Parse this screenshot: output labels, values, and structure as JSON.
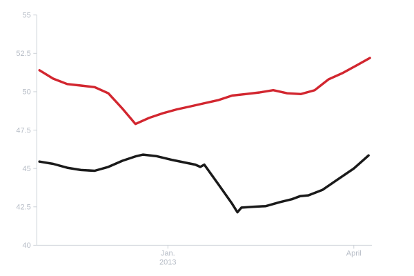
{
  "page": {
    "background": "#ffffff"
  },
  "colors": {
    "axis_line": "#ccd1d7",
    "tick_label": "#b6bcc6",
    "red_series": "#d2262f",
    "black_series": "#1a1a1a",
    "background": "#ffffff"
  },
  "chart_data": {
    "type": "line",
    "title": "",
    "xlabel": "",
    "ylabel": "",
    "grid": "off",
    "legend": "none",
    "y_axis": {
      "min": 40,
      "max": 55,
      "ticks": [
        40,
        42.5,
        45,
        47.5,
        50,
        52.5,
        55
      ],
      "tick_labels": [
        "40",
        "42.5",
        "45",
        "47.5",
        "50",
        "52.5",
        "55"
      ]
    },
    "x_axis": {
      "ticks": [
        {
          "pos": 0.392,
          "label": "Jan.",
          "sublabel": "2013"
        },
        {
          "pos": 0.948,
          "label": "April",
          "sublabel": ""
        }
      ]
    },
    "series": [
      {
        "name": "red-line",
        "color": "#d2262f",
        "stroke_width": 3.4,
        "points": [
          [
            0.008,
            51.4
          ],
          [
            0.049,
            50.85
          ],
          [
            0.091,
            50.5
          ],
          [
            0.132,
            50.4
          ],
          [
            0.173,
            50.3
          ],
          [
            0.214,
            49.9
          ],
          [
            0.256,
            48.9
          ],
          [
            0.295,
            47.9
          ],
          [
            0.336,
            48.3
          ],
          [
            0.377,
            48.6
          ],
          [
            0.419,
            48.85
          ],
          [
            0.46,
            49.05
          ],
          [
            0.501,
            49.25
          ],
          [
            0.542,
            49.45
          ],
          [
            0.584,
            49.75
          ],
          [
            0.625,
            49.85
          ],
          [
            0.666,
            49.95
          ],
          [
            0.707,
            50.1
          ],
          [
            0.749,
            49.9
          ],
          [
            0.79,
            49.85
          ],
          [
            0.831,
            50.1
          ],
          [
            0.872,
            50.8
          ],
          [
            0.913,
            51.2
          ],
          [
            0.955,
            51.7
          ],
          [
            0.996,
            52.2
          ]
        ]
      },
      {
        "name": "black-line",
        "color": "#1a1a1a",
        "stroke_width": 3.5,
        "points": [
          [
            0.008,
            45.45
          ],
          [
            0.049,
            45.3
          ],
          [
            0.091,
            45.05
          ],
          [
            0.132,
            44.9
          ],
          [
            0.173,
            44.85
          ],
          [
            0.214,
            45.1
          ],
          [
            0.256,
            45.5
          ],
          [
            0.297,
            45.8
          ],
          [
            0.318,
            45.9
          ],
          [
            0.359,
            45.8
          ],
          [
            0.406,
            45.55
          ],
          [
            0.451,
            45.35
          ],
          [
            0.474,
            45.25
          ],
          [
            0.489,
            45.1
          ],
          [
            0.501,
            45.25
          ],
          [
            0.542,
            44.0
          ],
          [
            0.584,
            42.7
          ],
          [
            0.6,
            42.15
          ],
          [
            0.612,
            42.45
          ],
          [
            0.645,
            42.5
          ],
          [
            0.685,
            42.55
          ],
          [
            0.726,
            42.8
          ],
          [
            0.763,
            43.0
          ],
          [
            0.788,
            43.2
          ],
          [
            0.812,
            43.25
          ],
          [
            0.854,
            43.6
          ],
          [
            0.901,
            44.3
          ],
          [
            0.948,
            45.0
          ],
          [
            0.992,
            45.85
          ]
        ]
      }
    ]
  }
}
